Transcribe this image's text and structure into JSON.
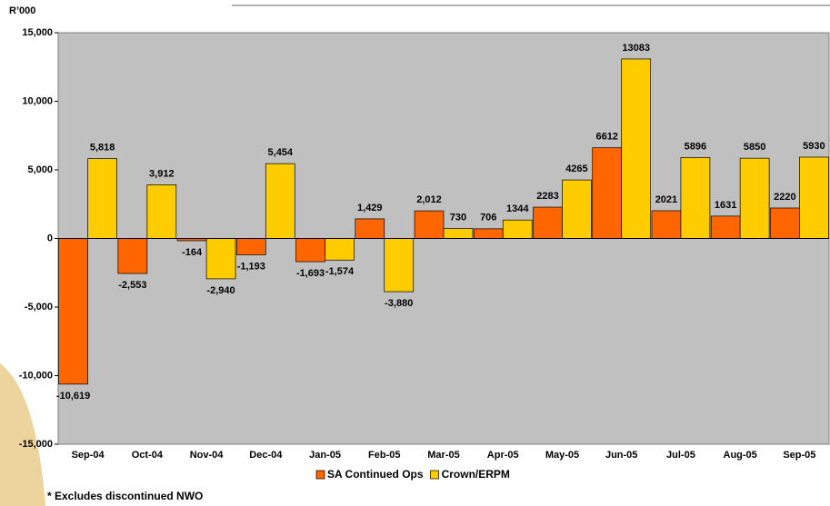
{
  "chart_data": {
    "type": "bar",
    "y_label": "R’000",
    "footnote": "* Excludes discontinued NWO",
    "categories": [
      "Sep-04",
      "Oct-04",
      "Nov-04",
      "Dec-04",
      "Jan-05",
      "Feb-05",
      "Mar-05",
      "Apr-05",
      "May-05",
      "Jun-05",
      "Jul-05",
      "Aug-05",
      "Sep-05"
    ],
    "series": [
      {
        "name": "SA Continued Ops",
        "color": "#ff6600",
        "values": [
          -10619,
          -2553,
          -164,
          -1193,
          -1693,
          1429,
          2012,
          706,
          2283,
          6612,
          2021,
          1631,
          2220
        ],
        "value_labels": [
          "-10,619",
          "-2,553",
          "-164",
          "-1,193",
          "-1,693",
          "1,429",
          "2,012",
          "706",
          "2283",
          "6612",
          "2021",
          "1631",
          "2220"
        ]
      },
      {
        "name": "Crown/ERPM",
        "color": "#ffcc00",
        "values": [
          5818,
          3912,
          -2940,
          5454,
          -1574,
          -3880,
          730,
          1344,
          4265,
          13083,
          5896,
          5850,
          5930
        ],
        "value_labels": [
          "5,818",
          "3,912",
          "-2,940",
          "5,454",
          "-1,574",
          "-3,880",
          "730",
          "1344",
          "4265",
          "13083",
          "5896",
          "5850",
          "5930"
        ]
      }
    ],
    "ylim": [
      -15000,
      15000
    ],
    "yticks": [
      {
        "value": -15000,
        "label": "-15,000"
      },
      {
        "value": -10000,
        "label": "-10,000"
      },
      {
        "value": -5000,
        "label": "-5,000"
      },
      0,
      {
        "value": 5000,
        "label": "5,000"
      },
      {
        "value": 10000,
        "label": "10,000"
      },
      {
        "value": 15000,
        "label": "15,000"
      }
    ],
    "plot_background": "#c0c0c0",
    "legend": "bottom"
  }
}
